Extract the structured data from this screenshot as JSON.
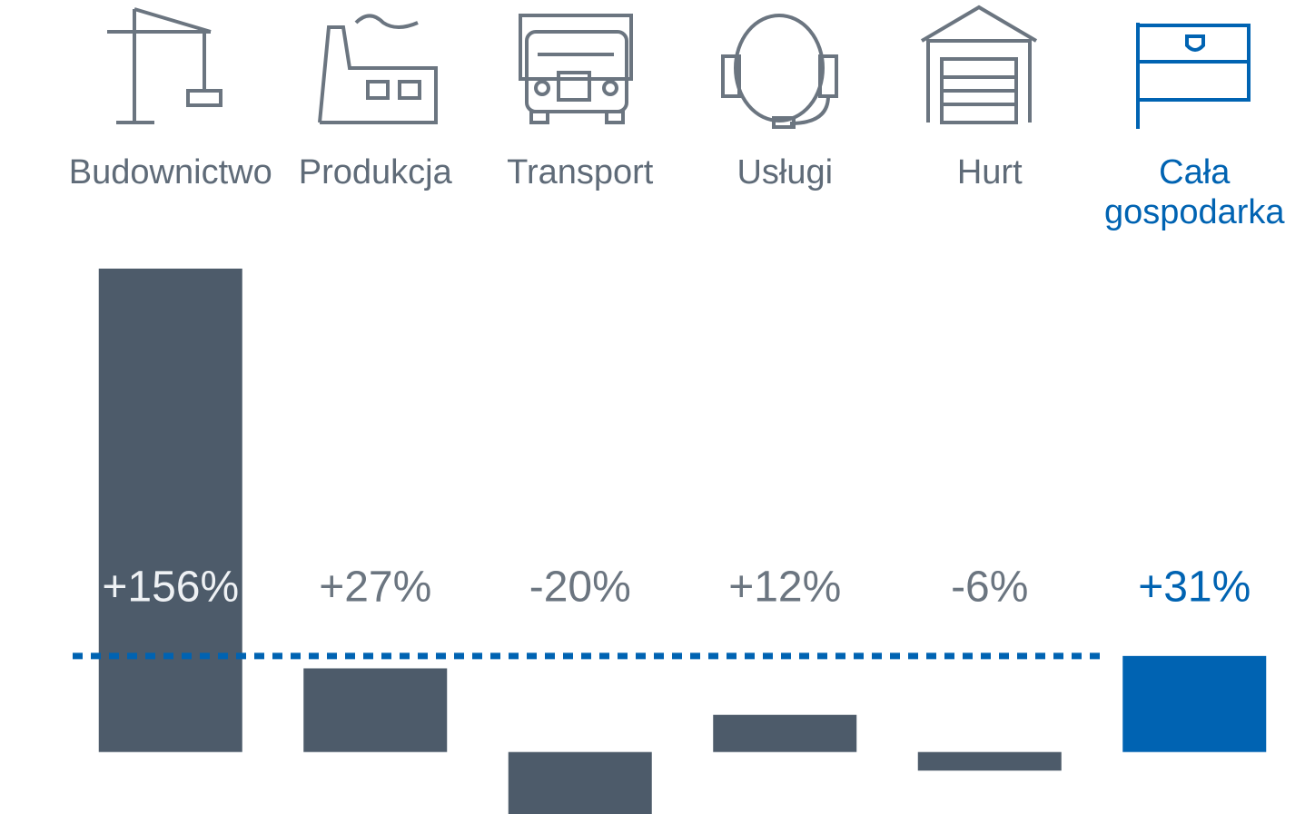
{
  "chart_data": {
    "type": "bar",
    "categories": [
      "Budownictwo",
      "Produkcja",
      "Transport",
      "Usługi",
      "Hurt",
      "Cała gospodarka"
    ],
    "values": [
      156,
      27,
      -20,
      12,
      -6,
      31
    ],
    "value_labels": [
      "+156%",
      "+27%",
      "-20%",
      "+12%",
      "-6%",
      "+31%"
    ],
    "colors": [
      "#4d5b6a",
      "#4d5b6a",
      "#4d5b6a",
      "#4d5b6a",
      "#4d5b6a",
      "#0063b2"
    ],
    "ylim": [
      -20,
      156
    ]
  }
}
